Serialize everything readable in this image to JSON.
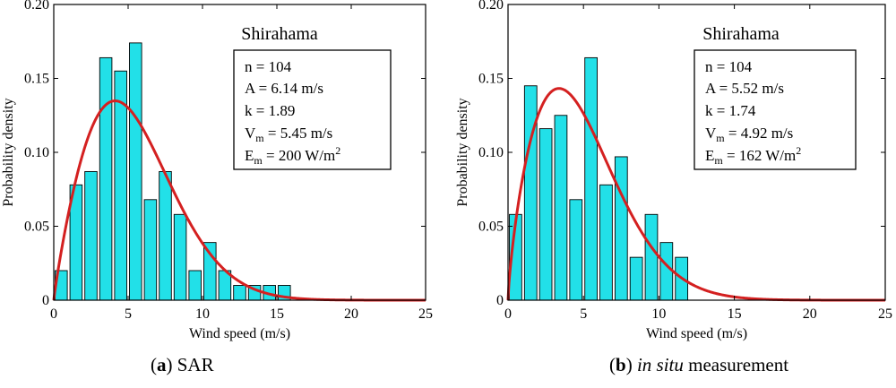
{
  "chart_data": [
    {
      "type": "bar",
      "subplot": "a",
      "title": "Shirahama",
      "xlabel": "Wind speed (m/s)",
      "ylabel": "Probability density",
      "xlim": [
        0,
        25
      ],
      "ylim": [
        0,
        0.2
      ],
      "xticks": [
        "0",
        "5",
        "10",
        "15",
        "20",
        "25"
      ],
      "yticks": [
        "0",
        "0.05",
        "0.10",
        "0.15",
        "0.20"
      ],
      "bin_centers": [
        0.5,
        1.5,
        2.5,
        3.5,
        4.5,
        5.5,
        6.5,
        7.5,
        8.5,
        9.5,
        10.5,
        11.5,
        12.5,
        13.5,
        14.5,
        15.5
      ],
      "values": [
        0.02,
        0.078,
        0.087,
        0.164,
        0.155,
        0.174,
        0.068,
        0.087,
        0.058,
        0.02,
        0.039,
        0.02,
        0.01,
        0.01,
        0.01,
        0.01
      ],
      "weibull": {
        "A": 6.14,
        "k": 1.89
      },
      "stats": [
        "n = 104",
        "A = 6.14 m/s",
        "k = 1.89",
        "V",
        "m",
        " = 5.45 m/s",
        "E",
        "m",
        " = 200 W/m",
        "2"
      ],
      "bar_color": "#22e0e8",
      "curve_color": "#d42020"
    },
    {
      "type": "bar",
      "subplot": "b",
      "title": "Shirahama",
      "xlabel": "Wind speed (m/s)",
      "ylabel": "Probability density",
      "xlim": [
        0,
        25
      ],
      "ylim": [
        0,
        0.2
      ],
      "xticks": [
        "0",
        "5",
        "10",
        "15",
        "20",
        "25"
      ],
      "yticks": [
        "0",
        "0.05",
        "0.10",
        "0.15",
        "0.20"
      ],
      "bin_centers": [
        0.5,
        1.5,
        2.5,
        3.5,
        4.5,
        5.5,
        6.5,
        7.5,
        8.5,
        9.5,
        10.5,
        11.5
      ],
      "values": [
        0.058,
        0.145,
        0.116,
        0.125,
        0.068,
        0.164,
        0.078,
        0.097,
        0.029,
        0.058,
        0.039,
        0.029
      ],
      "weibull": {
        "A": 5.52,
        "k": 1.74
      },
      "stats": [
        "n = 104",
        "A = 5.52 m/s",
        "k = 1.74",
        "V",
        "m",
        " = 4.92 m/s",
        "E",
        "m",
        " = 162 W/m",
        "2"
      ],
      "bar_color": "#22e0e8",
      "curve_color": "#d42020"
    }
  ],
  "captions": {
    "a": {
      "letter": "a",
      "text": " SAR"
    },
    "b": {
      "letter": "b",
      "text_italic": "in situ",
      "text": " measurement"
    }
  }
}
